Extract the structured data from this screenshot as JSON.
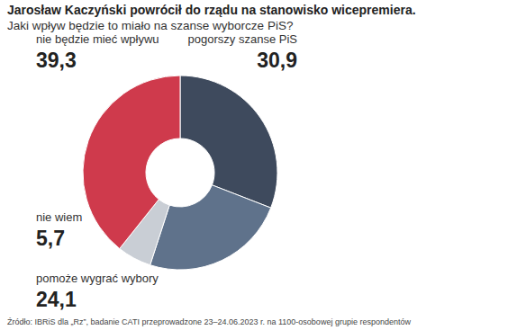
{
  "chart_data": {
    "type": "pie",
    "title": "Jarosław Kaczyński powrócił do rządu na stanowisko wicepremiera.",
    "subtitle": "Jaki wpływ będzie to miało na szanse wyborcze PiS?",
    "categories": [
      "pogorszy szanse PiS",
      "pomoże wygrać wybory",
      "nie wiem",
      "nie będzie mieć wpływu"
    ],
    "values": [
      30.9,
      24.1,
      5.7,
      39.3
    ],
    "value_labels": [
      "30,9",
      "24,1",
      "5,7",
      "39,3"
    ],
    "colors": [
      "#3e4a5d",
      "#5f728b",
      "#c9ced5",
      "#cf3a4c"
    ],
    "data_labels": true,
    "source": "Źródło: IBRiS dla „Rz”, badanie CATI przeprowadzone 23–24.06.2023 r. na 1100-osobowej grupie respondentów"
  }
}
